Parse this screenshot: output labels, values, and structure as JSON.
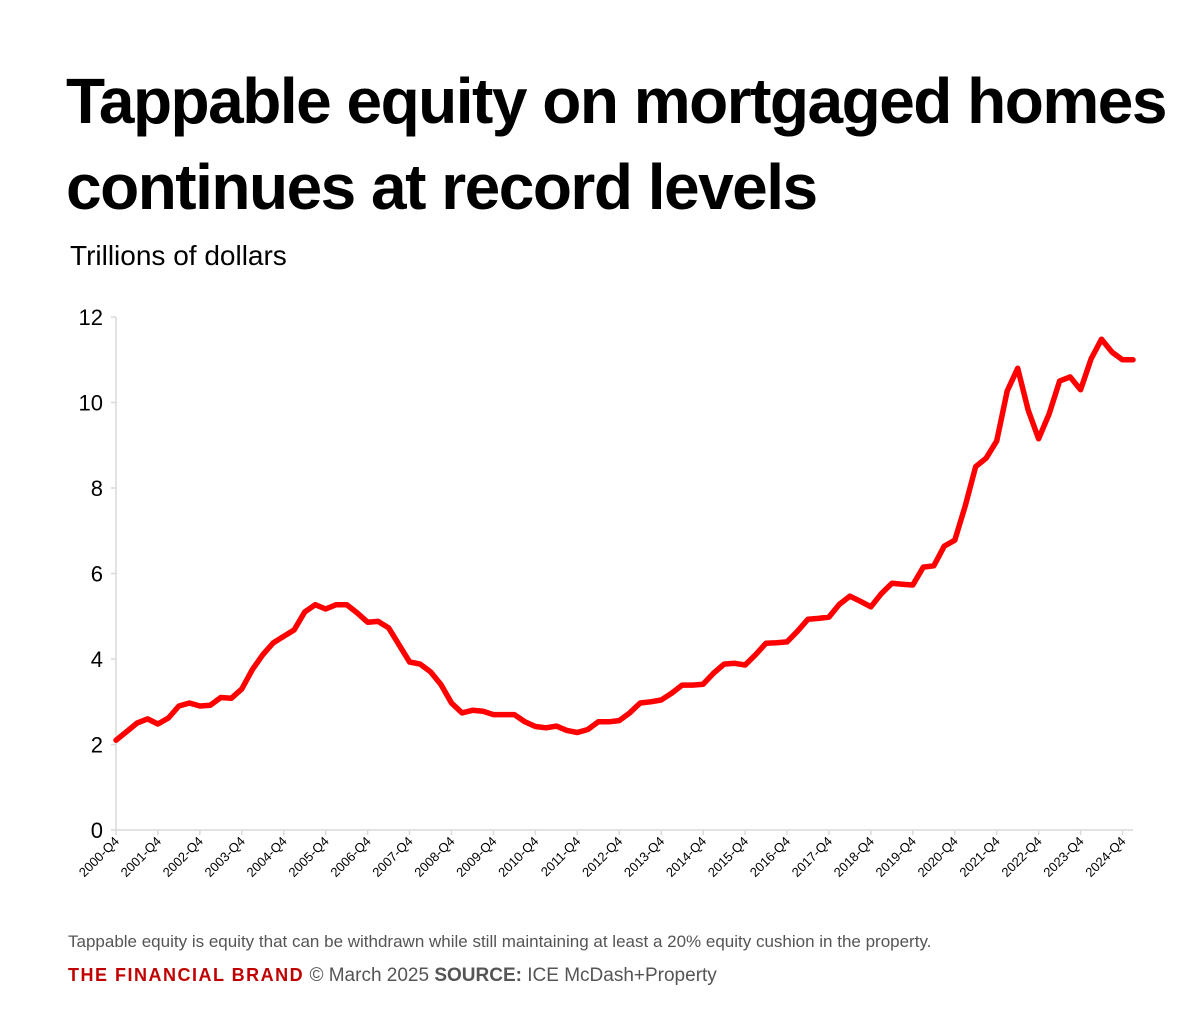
{
  "chart_data": {
    "type": "line",
    "title": "Tappable equity on mortgaged homes continues at record levels",
    "subtitle": "Trillions of dollars",
    "xlabel": "",
    "ylabel": "",
    "ylim": [
      0,
      12
    ],
    "y_ticks": [
      0,
      2,
      4,
      6,
      8,
      10,
      12
    ],
    "grid": false,
    "x_tick_labels": [
      "2000-Q4",
      "2001-Q4",
      "2002-Q4",
      "2003-Q4",
      "2004-Q4",
      "2005-Q4",
      "2006-Q4",
      "2007-Q4",
      "2008-Q4",
      "2009-Q4",
      "2010-Q4",
      "2011-Q4",
      "2012-Q4",
      "2013-Q4",
      "2014-Q4",
      "2015-Q4",
      "2016-Q4",
      "2017-Q4",
      "2018-Q4",
      "2019-Q4",
      "2020-Q4",
      "2021-Q4",
      "2022-Q4",
      "2023-Q4",
      "2024-Q4"
    ],
    "series": [
      {
        "color": "#ff0000",
        "values": [
          2.1,
          2.3,
          2.5,
          2.6,
          2.48,
          2.62,
          2.9,
          2.97,
          2.9,
          2.92,
          3.1,
          3.08,
          3.3,
          3.75,
          4.1,
          4.38,
          4.53,
          4.68,
          5.1,
          5.27,
          5.17,
          5.27,
          5.27,
          5.08,
          4.86,
          4.88,
          4.73,
          4.33,
          3.93,
          3.88,
          3.7,
          3.4,
          2.97,
          2.74,
          2.8,
          2.78,
          2.7,
          2.7,
          2.7,
          2.53,
          2.42,
          2.39,
          2.43,
          2.33,
          2.28,
          2.35,
          2.53,
          2.53,
          2.56,
          2.74,
          2.97,
          3.0,
          3.04,
          3.2,
          3.39,
          3.39,
          3.41,
          3.67,
          3.88,
          3.9,
          3.86,
          4.1,
          4.37,
          4.38,
          4.4,
          4.65,
          4.93,
          4.95,
          4.98,
          5.28,
          5.47,
          5.35,
          5.22,
          5.53,
          5.77,
          5.75,
          5.73,
          6.15,
          6.18,
          6.64,
          6.78,
          7.58,
          8.5,
          8.7,
          9.1,
          10.27,
          10.8,
          9.82,
          9.15,
          9.73,
          10.5,
          10.6,
          10.3,
          11.02,
          11.48,
          11.18,
          11.0,
          11.0
        ]
      }
    ]
  },
  "footer": {
    "note": "Tappable equity is equity that can be withdrawn while still maintaining at least a 20% equity cushion in the property.",
    "brand": "THE FINANCIAL BRAND",
    "copyright": "© March 2025",
    "source_label": "SOURCE:",
    "source": "ICE McDash+Property",
    "brand_color": "#c00000"
  }
}
